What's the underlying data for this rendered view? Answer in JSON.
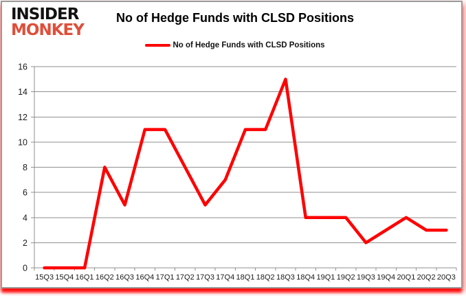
{
  "logo": {
    "line1": "INSIDER",
    "line2": "MONKEY"
  },
  "header": {
    "title": "No of Hedge Funds with CLSD Positions"
  },
  "legend": {
    "label": "No of Hedge Funds with CLSD Positions"
  },
  "colors": {
    "series": "#ff0000",
    "logo_text": "#111111",
    "logo_accent": "#df4f3a",
    "grid": "#8f8f8f",
    "axis": "#8f8f8f",
    "tick_text": "#1a1a1a"
  },
  "chart_data": {
    "type": "line",
    "title": "No of Hedge Funds with CLSD Positions",
    "categories": [
      "15Q3",
      "15Q4",
      "16Q1",
      "16Q2",
      "16Q3",
      "16Q4",
      "17Q1",
      "17Q2",
      "17Q3",
      "17Q4",
      "18Q1",
      "18Q2",
      "18Q3",
      "18Q4",
      "19Q1",
      "19Q2",
      "19Q3",
      "19Q4",
      "20Q1",
      "20Q2",
      "20Q3"
    ],
    "series": [
      {
        "name": "No of Hedge Funds with CLSD Positions",
        "values": [
          0,
          0,
          0,
          8,
          5,
          11,
          11,
          8,
          5,
          7,
          11,
          11,
          15,
          4,
          4,
          4,
          2,
          3,
          4,
          3,
          3
        ]
      }
    ],
    "xlabel": "",
    "ylabel": "",
    "ylim": [
      0,
      16
    ],
    "ytick_step": 2,
    "grid": true,
    "legend_position": "top-center"
  }
}
